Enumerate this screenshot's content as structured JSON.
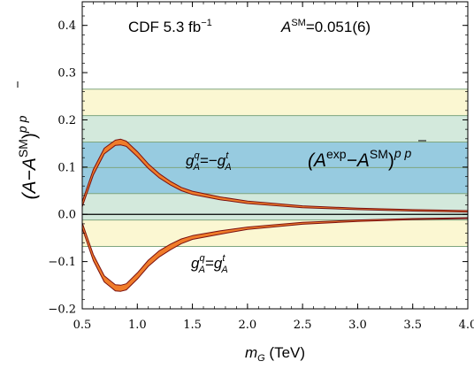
{
  "chart_data": {
    "type": "line",
    "title": "",
    "xlabel": {
      "base": "m",
      "sub": "G",
      "unit": " (TeV)"
    },
    "ylabel": {
      "pre": "(A−A",
      "sup1": "SM",
      "mid": ")",
      "sup2": "p p"
    },
    "xlim": [
      0.5,
      4.0
    ],
    "ylim": [
      -0.2,
      0.45
    ],
    "x_ticks": [
      0.5,
      1.0,
      1.5,
      2.0,
      2.5,
      3.0,
      3.5,
      4.0
    ],
    "x_tick_labels": [
      "0.5",
      "1.0",
      "1.5",
      "2.0",
      "2.5",
      "3.0",
      "3.5",
      "4.0"
    ],
    "y_ticks": [
      -0.2,
      -0.1,
      0.0,
      0.1,
      0.2,
      0.3,
      0.4
    ],
    "y_tick_labels": [
      "−0.2",
      "−0.1",
      "0.0",
      "0.1",
      "0.2",
      "0.3",
      "0.4"
    ],
    "bands": [
      {
        "ylow": -0.068,
        "yhigh": 0.265,
        "color": "#fbf7d2"
      },
      {
        "ylow": -0.012,
        "yhigh": 0.209,
        "color": "#d3e9dc"
      },
      {
        "ylow": 0.044,
        "yhigh": 0.153,
        "color": "#97cbe0"
      }
    ],
    "band_lines": [
      -0.068,
      -0.012,
      0.044,
      0.099,
      0.153,
      0.209,
      0.265
    ],
    "band_line_color": "#7fa67f",
    "fill_color": "#f07c2a",
    "edge_color": "#7a1010",
    "series": [
      {
        "x": [
          0.5,
          0.6,
          0.7,
          0.8,
          0.85,
          0.9,
          1.0,
          1.1,
          1.2,
          1.3,
          1.4,
          1.5,
          1.75,
          2.0,
          2.5,
          3.0,
          3.5,
          4.0
        ],
        "upper": [
          0.027,
          0.095,
          0.14,
          0.157,
          0.159,
          0.155,
          0.133,
          0.107,
          0.086,
          0.07,
          0.057,
          0.049,
          0.037,
          0.028,
          0.018,
          0.013,
          0.01,
          0.008
        ],
        "lower": [
          0.016,
          0.083,
          0.128,
          0.146,
          0.147,
          0.144,
          0.122,
          0.097,
          0.077,
          0.062,
          0.05,
          0.042,
          0.031,
          0.023,
          0.014,
          0.01,
          0.007,
          0.005
        ]
      },
      {
        "x": [
          0.5,
          0.6,
          0.7,
          0.8,
          0.85,
          0.9,
          1.0,
          1.1,
          1.2,
          1.3,
          1.4,
          1.5,
          1.75,
          2.0,
          2.5,
          3.0,
          3.5,
          4.0
        ],
        "upper": [
          -0.018,
          -0.085,
          -0.13,
          -0.149,
          -0.15,
          -0.147,
          -0.124,
          -0.097,
          -0.077,
          -0.063,
          -0.052,
          -0.045,
          -0.035,
          -0.027,
          -0.017,
          -0.012,
          -0.009,
          -0.007
        ],
        "lower": [
          -0.03,
          -0.098,
          -0.143,
          -0.162,
          -0.163,
          -0.16,
          -0.137,
          -0.11,
          -0.09,
          -0.075,
          -0.062,
          -0.053,
          -0.042,
          -0.032,
          -0.021,
          -0.015,
          -0.011,
          -0.009
        ]
      }
    ],
    "annotations": {
      "experiment": {
        "text": "CDF 5.3 fb",
        "sup": "−1"
      },
      "asm": {
        "base": "A",
        "sup": "SM",
        "rest": "=0.051(6)"
      },
      "upper_label": {
        "g": "g",
        "sup": "q",
        "sub": "A",
        "eq": "=−",
        "g2": "g",
        "sup2": "t",
        "sub2": "A"
      },
      "lower_label": {
        "g": "g",
        "sup": "q",
        "sub": "A",
        "eq": "=",
        "g2": "g",
        "sup2": "t",
        "sub2": "A"
      },
      "band_label": {
        "open": "(A",
        "sup1": "exp",
        "minus": "−A",
        "sup2": "SM",
        "close": ")",
        "sup3": "p p"
      }
    }
  }
}
